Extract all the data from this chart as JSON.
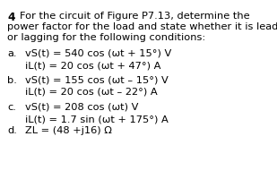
{
  "title_number": "4",
  "title_line1": "For the circuit of Figure P7.13, determine the",
  "title_line2": "power factor for the load and state whether it is leading",
  "title_line3": "or lagging for the following conditions:",
  "items": [
    {
      "label": "a.",
      "line1_parts": [
        {
          "text": "v",
          "style": "italic"
        },
        {
          "text": "S",
          "style": "sub"
        },
        {
          "text": "(t)",
          "style": "italic"
        },
        {
          "text": " = 540 cos (",
          "style": "normal"
        },
        {
          "text": "ωt",
          "style": "italic"
        },
        {
          "text": " + 15°) V",
          "style": "normal"
        }
      ],
      "line1_plain": "vS(t) = 540 cos (ωt + 15°) V",
      "line2_plain": "iL(t) = 20 cos (ωt + 47°) A"
    },
    {
      "label": "b.",
      "line1_plain": "vS(t) = 155 cos (ωt – 15°) V",
      "line2_plain": "iL(t) = 20 cos (ωt – 22°) A"
    },
    {
      "label": "c.",
      "line1_plain": "vS(t) = 208 cos (ωt) V",
      "line2_plain": "iL(t) = 1.7 sin (ωt + 175°) A"
    },
    {
      "label": "d.",
      "line1_plain": "ZL = (48 +j16) Ω",
      "line2_plain": null
    }
  ],
  "bg_color": "#ffffff",
  "text_color": "#000000",
  "fontsize": 8.2
}
